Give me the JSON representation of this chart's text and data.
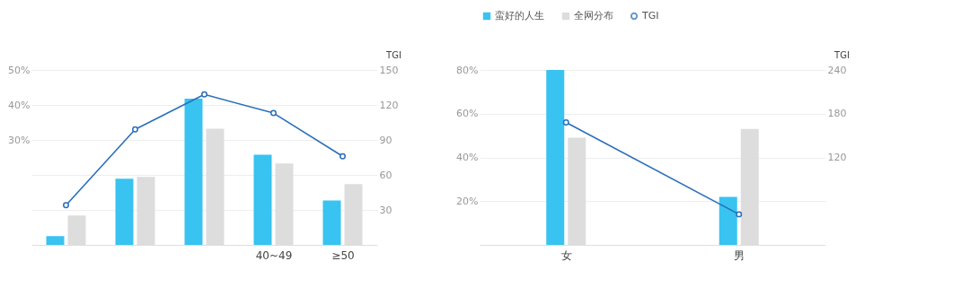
{
  "chart_data": [
    {
      "type": "bar",
      "categories": [
        null,
        null,
        null,
        "40~49",
        "≥50"
      ],
      "ylim": [
        0,
        50
      ],
      "yticks": [
        {
          "value": 10,
          "label": null
        },
        {
          "value": 20,
          "label": null
        },
        {
          "value": 30,
          "label": "30%"
        },
        {
          "value": 40,
          "label": "40%"
        },
        {
          "value": 50,
          "label": "50%"
        }
      ],
      "y2label": "TGI",
      "y2lim": [
        0,
        150
      ],
      "y2ticks": [
        30,
        60,
        90,
        120,
        150
      ],
      "grid": "y",
      "series": [
        {
          "color": "#38c3f1",
          "values": [
            2.5,
            18.9,
            41.8,
            25.8,
            12.7
          ]
        },
        {
          "color": "#dddddd",
          "values": [
            8.4,
            19.4,
            33.2,
            23.3,
            17.4
          ]
        },
        {
          "type": "line",
          "axis": "y2",
          "marker": "circle",
          "color": "#2a6fba",
          "values": [
            34,
            99,
            129,
            113,
            76
          ]
        }
      ]
    },
    {
      "type": "bar",
      "categories": [
        "女",
        "男"
      ],
      "ylim": [
        0,
        80
      ],
      "yticks": [
        {
          "value": 20,
          "label": "20%"
        },
        {
          "value": 40,
          "label": "40%"
        },
        {
          "value": 60,
          "label": "60%"
        },
        {
          "value": 80,
          "label": "80%"
        }
      ],
      "y2label": "TGI",
      "y2lim": [
        0,
        240
      ],
      "y2ticks": [
        120,
        180,
        240
      ],
      "grid": "y",
      "legend": "top left",
      "series": [
        {
          "name": "蛮好的人生",
          "color": "#38c3f1",
          "values": [
            80,
            22
          ]
        },
        {
          "name": "全网分布",
          "color": "#dddddd",
          "values": [
            49,
            53
          ]
        },
        {
          "name": "TGI",
          "type": "line",
          "axis": "y2",
          "marker": "circle",
          "color": "#2a6fba",
          "values": [
            168,
            42
          ]
        }
      ]
    }
  ]
}
